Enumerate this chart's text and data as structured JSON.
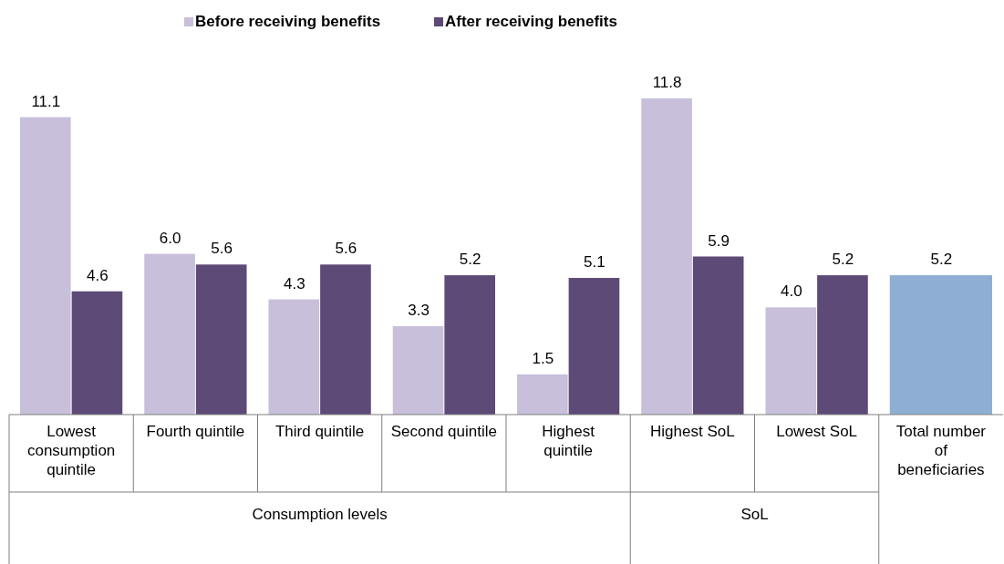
{
  "chart_data": {
    "type": "bar",
    "categories": [
      "Lowest consumption quintile",
      "Fourth quintile",
      "Third quintile",
      "Second quintile",
      "Highest quintile",
      "Highest SoL",
      "Lowest SoL",
      "Total number of beneficiaries"
    ],
    "series": [
      {
        "name": "Before receiving benefits",
        "color": "#c8bfdb",
        "values": [
          11.1,
          6.0,
          4.3,
          3.3,
          1.5,
          11.8,
          4.0,
          null
        ],
        "value_labels": [
          "11.1",
          "6.0",
          "4.3",
          "3.3",
          "1.5",
          "11.8",
          "4.0",
          null
        ]
      },
      {
        "name": "After receiving benefits",
        "color": "#5d4a77",
        "values": [
          4.6,
          5.6,
          5.6,
          5.2,
          5.1,
          5.9,
          5.2,
          null
        ]
      },
      {
        "color": "#8eafd3",
        "values": [
          null,
          null,
          null,
          null,
          null,
          null,
          null,
          5.2
        ]
      }
    ],
    "data_labels": true,
    "legend": "top",
    "annotations": [
      "Consumption levels",
      "SoL"
    ]
  }
}
